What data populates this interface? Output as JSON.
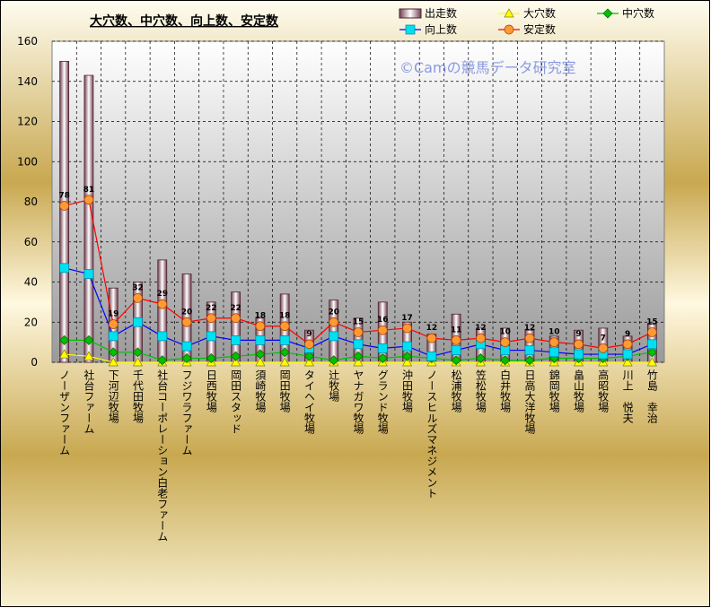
{
  "chart_data": {
    "type": "bar",
    "title": "大穴数、中穴数、向上数、安定数",
    "watermark": "©Camの競馬データ研究室",
    "categories": [
      "ノーザンファーム",
      "社台ファーム",
      "下河辺牧場",
      "千代田牧場",
      "社台コーポレーション白老ファーム",
      "フジワラファーム",
      "日西牧場",
      "岡田スタッド",
      "須崎牧場",
      "岡田牧場",
      "タイヘイ牧場",
      "辻牧場",
      "ヤナガワ牧場",
      "グランド牧場",
      "沖田牧場",
      "ノースヒルズマネジメント",
      "松浦牧場",
      "笠松牧場",
      "白井牧場",
      "日高大洋牧場",
      "錦岡牧場",
      "畠山牧場",
      "高昭牧場",
      "川上　悦夫",
      "竹島　幸治"
    ],
    "series": [
      {
        "name": "出走数",
        "type": "bar",
        "color": "#f0e0ec",
        "values": [
          150,
          143,
          37,
          40,
          51,
          44,
          30,
          35,
          22,
          34,
          16,
          31,
          22,
          30,
          20,
          14,
          24,
          17,
          17,
          16,
          13,
          16,
          17,
          13,
          19
        ]
      },
      {
        "name": "大穴数",
        "type": "line",
        "marker": "triangle",
        "color": "#ffff00",
        "values": [
          4,
          3,
          0,
          0,
          0,
          0,
          0,
          0,
          0,
          0,
          0,
          0,
          0,
          0,
          0,
          0,
          0,
          0,
          0,
          0,
          0,
          0,
          0,
          0,
          0
        ]
      },
      {
        "name": "中穴数",
        "type": "line",
        "marker": "diamond",
        "color": "#00c000",
        "values": [
          11,
          11,
          5,
          5,
          1,
          2,
          2,
          3,
          4,
          5,
          3,
          1,
          3,
          2,
          3,
          2,
          1,
          2,
          1,
          1,
          2,
          2,
          2,
          3,
          5
        ]
      },
      {
        "name": "向上数",
        "type": "line",
        "marker": "square",
        "color": "#0000ff",
        "fill": "#00e0f0",
        "values": [
          47,
          44,
          13,
          20,
          13,
          8,
          13,
          11,
          11,
          11,
          7,
          13,
          9,
          7,
          8,
          3,
          6,
          9,
          6,
          6,
          5,
          4,
          4,
          4,
          9
        ]
      },
      {
        "name": "安定数",
        "type": "line",
        "marker": "circle",
        "color": "#ff0000",
        "fill": "#ff9933",
        "show_labels": true,
        "values": [
          78,
          81,
          19,
          32,
          29,
          20,
          22,
          22,
          18,
          18,
          9,
          20,
          15,
          16,
          17,
          12,
          11,
          12,
          10,
          12,
          10,
          9,
          7,
          9,
          15
        ]
      }
    ],
    "ylim": [
      0,
      160
    ],
    "yticks": [
      0,
      20,
      40,
      60,
      80,
      100,
      120,
      140,
      160
    ],
    "grid": true
  }
}
